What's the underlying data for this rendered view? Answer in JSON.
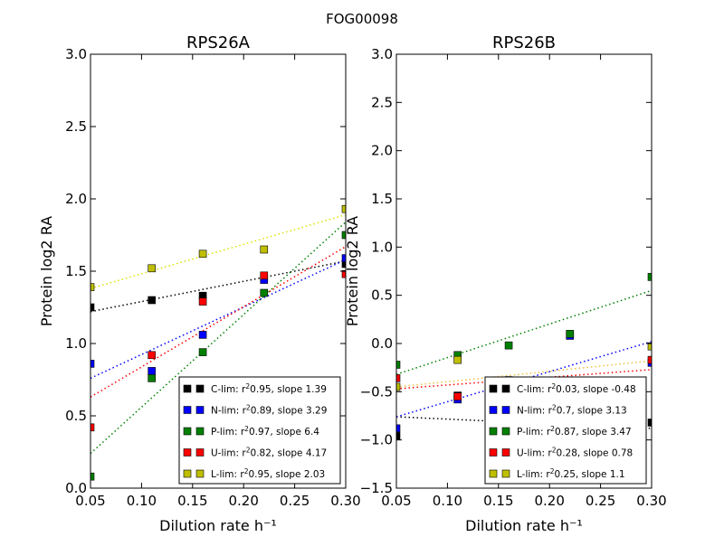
{
  "figure": {
    "suptitle": "FOG00098"
  },
  "chart_data": [
    {
      "type": "scatter",
      "title": "RPS26A",
      "xlabel": "Dilution rate h⁻¹",
      "ylabel": "Protein log2 RA",
      "xlim": [
        0.05,
        0.3
      ],
      "ylim": [
        0.0,
        3.0
      ],
      "xticks": [
        "0.05",
        "0.10",
        "0.15",
        "0.20",
        "0.25",
        "0.30"
      ],
      "yticks": [
        "0.0",
        "0.5",
        "1.0",
        "1.5",
        "2.0",
        "2.5",
        "3.0"
      ],
      "grid": false,
      "legend_position": "lower-right",
      "series": [
        {
          "name": "C-lim",
          "r2": "0.95",
          "slope": "1.39",
          "color": "#000000",
          "trendline_color": "#000000",
          "points": [
            [
              0.05,
              1.25
            ],
            [
              0.11,
              1.3
            ],
            [
              0.16,
              1.33
            ],
            [
              0.22,
              1.45
            ],
            [
              0.3,
              1.55
            ]
          ],
          "trendline": [
            [
              0.05,
              1.22
            ],
            [
              0.3,
              1.57
            ]
          ]
        },
        {
          "name": "N-lim",
          "r2": "0.89",
          "slope": "3.29",
          "color": "#0000ff",
          "trendline_color": "#0000ff",
          "points": [
            [
              0.05,
              0.86
            ],
            [
              0.11,
              0.81
            ],
            [
              0.16,
              1.06
            ],
            [
              0.22,
              1.44
            ],
            [
              0.3,
              1.59
            ]
          ],
          "trendline": [
            [
              0.05,
              0.76
            ],
            [
              0.3,
              1.58
            ]
          ]
        },
        {
          "name": "P-lim",
          "r2": "0.97",
          "slope": "6.4",
          "color": "#008000",
          "trendline_color": "#008000",
          "points": [
            [
              0.05,
              0.08
            ],
            [
              0.11,
              0.76
            ],
            [
              0.16,
              0.94
            ],
            [
              0.22,
              1.35
            ],
            [
              0.3,
              1.75
            ]
          ],
          "trendline": [
            [
              0.05,
              0.24
            ],
            [
              0.3,
              1.84
            ]
          ]
        },
        {
          "name": "U-lim",
          "r2": "0.82",
          "slope": "4.17",
          "color": "#ff0000",
          "trendline_color": "#ff0000",
          "points": [
            [
              0.05,
              0.42
            ],
            [
              0.11,
              0.92
            ],
            [
              0.16,
              1.29
            ],
            [
              0.22,
              1.47
            ],
            [
              0.3,
              1.48
            ]
          ],
          "trendline": [
            [
              0.05,
              0.63
            ],
            [
              0.3,
              1.67
            ]
          ]
        },
        {
          "name": "L-lim",
          "r2": "0.95",
          "slope": "2.03",
          "color": "#bfbf00",
          "trendline_color": "#e0e000",
          "points": [
            [
              0.05,
              1.39
            ],
            [
              0.11,
              1.52
            ],
            [
              0.16,
              1.62
            ],
            [
              0.22,
              1.65
            ],
            [
              0.3,
              1.93
            ]
          ],
          "trendline": [
            [
              0.05,
              1.38
            ],
            [
              0.3,
              1.89
            ]
          ]
        }
      ]
    },
    {
      "type": "scatter",
      "title": "RPS26B",
      "xlabel": "Dilution rate h⁻¹",
      "ylabel": "Protein log2 RA",
      "xlim": [
        0.05,
        0.3
      ],
      "ylim": [
        -1.5,
        3.0
      ],
      "xticks": [
        "0.05",
        "0.10",
        "0.15",
        "0.20",
        "0.25",
        "0.30"
      ],
      "yticks": [
        "−1.5",
        "−1.0",
        "−0.5",
        "0.0",
        "0.5",
        "1.0",
        "1.5",
        "2.0",
        "2.5",
        "3.0"
      ],
      "grid": false,
      "legend_position": "lower-right",
      "series": [
        {
          "name": "C-lim",
          "r2": "0.03",
          "slope": "-0.48",
          "color": "#000000",
          "trendline_color": "#000000",
          "points": [
            [
              0.05,
              -0.96
            ],
            [
              0.11,
              -0.54
            ],
            [
              0.16,
              -0.4
            ],
            [
              0.22,
              0.09
            ],
            [
              0.3,
              -0.82
            ]
          ],
          "trendline": [
            [
              0.05,
              -0.76
            ],
            [
              0.3,
              -0.88
            ]
          ]
        },
        {
          "name": "N-lim",
          "r2": "0.7",
          "slope": "3.13",
          "color": "#0000ff",
          "trendline_color": "#0000ff",
          "points": [
            [
              0.05,
              -0.88
            ],
            [
              0.11,
              -0.58
            ],
            [
              0.16,
              -0.4
            ],
            [
              0.22,
              0.08
            ],
            [
              0.3,
              -0.2
            ]
          ],
          "trendline": [
            [
              0.05,
              -0.76
            ],
            [
              0.3,
              0.02
            ]
          ]
        },
        {
          "name": "P-lim",
          "r2": "0.87",
          "slope": "3.47",
          "color": "#008000",
          "trendline_color": "#008000",
          "points": [
            [
              0.05,
              -0.22
            ],
            [
              0.11,
              -0.12
            ],
            [
              0.16,
              -0.02
            ],
            [
              0.22,
              0.1
            ],
            [
              0.3,
              0.69
            ]
          ],
          "trendline": [
            [
              0.05,
              -0.32
            ],
            [
              0.3,
              0.55
            ]
          ]
        },
        {
          "name": "U-lim",
          "r2": "0.28",
          "slope": "0.78",
          "color": "#ff0000",
          "trendline_color": "#ff0000",
          "points": [
            [
              0.05,
              -0.36
            ],
            [
              0.11,
              -0.55
            ],
            [
              0.16,
              -0.38
            ],
            [
              0.22,
              -0.39
            ],
            [
              0.3,
              -0.17
            ]
          ],
          "trendline": [
            [
              0.05,
              -0.47
            ],
            [
              0.3,
              -0.27
            ]
          ]
        },
        {
          "name": "L-lim",
          "r2": "0.25",
          "slope": "1.1",
          "color": "#bfbf00",
          "trendline_color": "#f0c040",
          "points": [
            [
              0.05,
              -0.45
            ],
            [
              0.11,
              -0.17
            ],
            [
              0.16,
              -0.4
            ],
            [
              0.22,
              -0.42
            ],
            [
              0.3,
              -0.03
            ]
          ],
          "trendline": [
            [
              0.05,
              -0.45
            ],
            [
              0.3,
              -0.18
            ]
          ]
        }
      ]
    }
  ]
}
